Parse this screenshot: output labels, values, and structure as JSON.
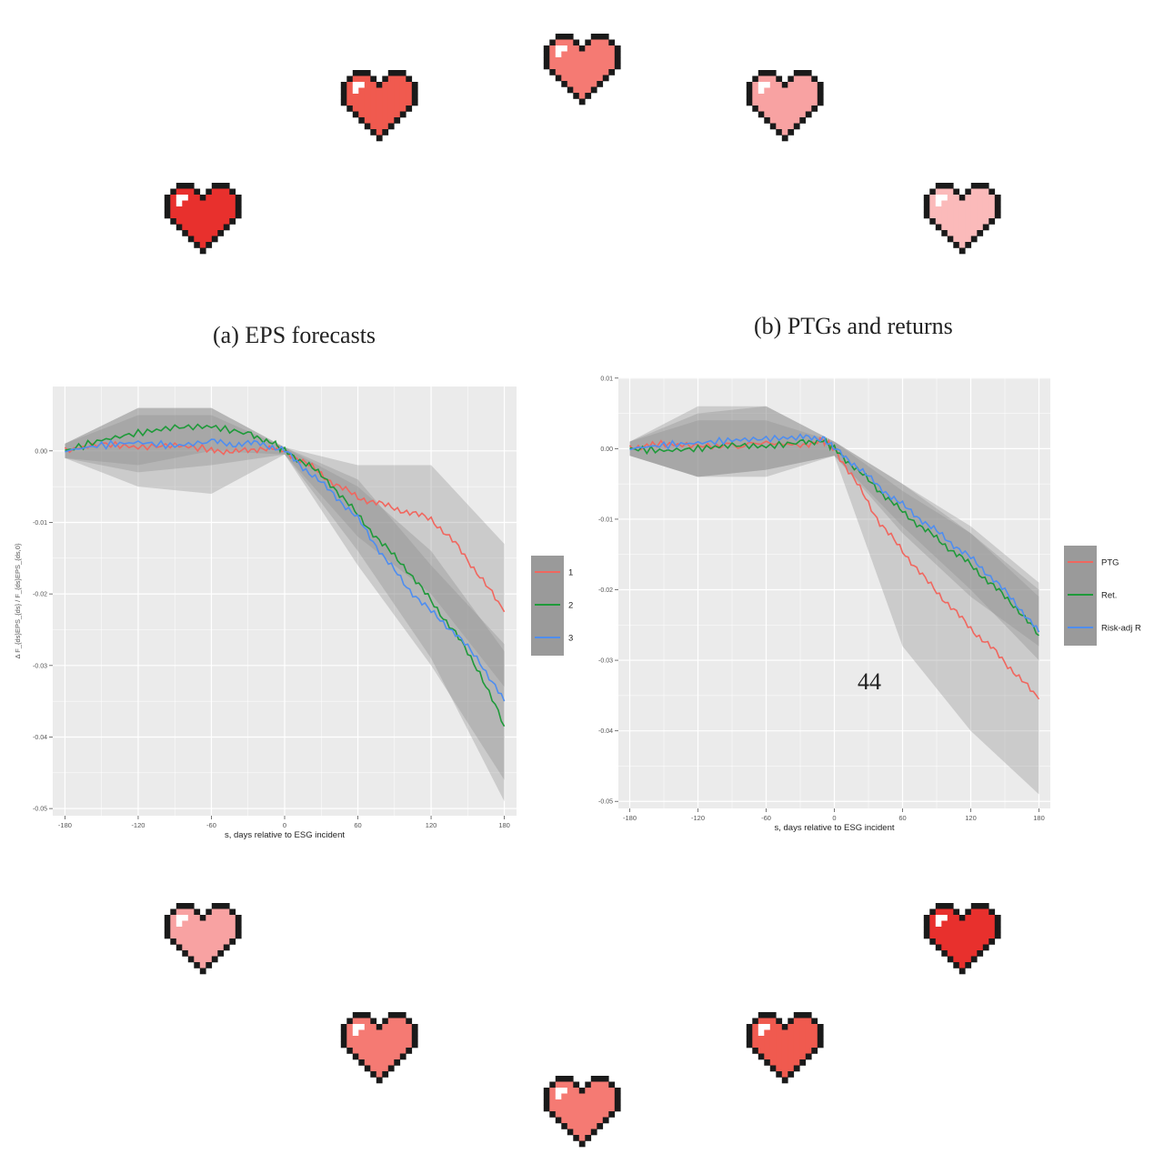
{
  "page_number": "44",
  "colors": {
    "panel_bg": "#ebebeb",
    "grid": "#ffffff",
    "ribbon": "#8a8a8a",
    "red": "#f0675f",
    "green": "#1f9a3a",
    "blue": "#4f8ef0",
    "heart_palette": [
      "#e8302d",
      "#f05a4f",
      "#f57a73",
      "#f8a2a2",
      "#fbbaba"
    ]
  },
  "decorations": {
    "icon": "pixel-heart-icon",
    "count": 12
  },
  "chart_data": [
    {
      "type": "line",
      "caption": "(a) EPS forecasts",
      "xlabel": "s, days relative to ESG incident",
      "ylabel": "Δ F_{ds}EPS_{ds} / F_{ds}EPS_{ds,0}",
      "xlim": [
        -190,
        190
      ],
      "ylim": [
        -0.051,
        0.009
      ],
      "x_ticks": [
        -180,
        -120,
        -60,
        0,
        60,
        120,
        180
      ],
      "x_tick_labels": [
        "-180",
        "-120",
        "-60",
        "0",
        "60",
        "120",
        "180"
      ],
      "y_ticks": [
        0.0,
        -0.01,
        -0.02,
        -0.03,
        -0.04,
        -0.05
      ],
      "y_tick_labels": [
        "0.00",
        "-0.01",
        "-0.02",
        "-0.03",
        "-0.04",
        "-0.05"
      ],
      "grid": true,
      "legend": {
        "position": "right",
        "entries": [
          "1",
          "2",
          "3"
        ]
      },
      "series": [
        {
          "name": "1",
          "color": "red",
          "points": [
            [
              -180,
              0.0
            ],
            [
              -150,
              0.001
            ],
            [
              -120,
              0.0005
            ],
            [
              -90,
              0.0008
            ],
            [
              -60,
              0.0002
            ],
            [
              -40,
              -0.0002
            ],
            [
              -20,
              0.0004
            ],
            [
              0,
              0.0
            ],
            [
              20,
              -0.002
            ],
            [
              40,
              -0.0045
            ],
            [
              60,
              -0.0065
            ],
            [
              80,
              -0.0075
            ],
            [
              100,
              -0.0085
            ],
            [
              120,
              -0.0095
            ],
            [
              140,
              -0.013
            ],
            [
              160,
              -0.0175
            ],
            [
              180,
              -0.0225
            ]
          ],
          "band": [
            [
              -180,
              0.001,
              -0.001
            ],
            [
              -120,
              0.006,
              -0.005
            ],
            [
              -60,
              0.006,
              -0.006
            ],
            [
              0,
              0.0005,
              -0.0005
            ],
            [
              60,
              -0.002,
              -0.012
            ],
            [
              120,
              -0.002,
              -0.02
            ],
            [
              180,
              -0.013,
              -0.033
            ]
          ]
        },
        {
          "name": "2",
          "color": "green",
          "points": [
            [
              -180,
              0.0
            ],
            [
              -150,
              0.0015
            ],
            [
              -120,
              0.0025
            ],
            [
              -90,
              0.0033
            ],
            [
              -60,
              0.0034
            ],
            [
              -30,
              0.0024
            ],
            [
              -10,
              0.0012
            ],
            [
              0,
              0.0
            ],
            [
              20,
              -0.002
            ],
            [
              40,
              -0.005
            ],
            [
              60,
              -0.009
            ],
            [
              80,
              -0.013
            ],
            [
              100,
              -0.0165
            ],
            [
              120,
              -0.021
            ],
            [
              140,
              -0.0255
            ],
            [
              160,
              -0.031
            ],
            [
              180,
              -0.0385
            ]
          ],
          "band": [
            [
              -180,
              0.001,
              -0.001
            ],
            [
              -120,
              0.006,
              -0.002
            ],
            [
              -60,
              0.006,
              0.0
            ],
            [
              0,
              0.0005,
              -0.0005
            ],
            [
              60,
              -0.005,
              -0.014
            ],
            [
              120,
              -0.014,
              -0.029
            ],
            [
              180,
              -0.028,
              -0.049
            ]
          ]
        },
        {
          "name": "3",
          "color": "blue",
          "points": [
            [
              -180,
              0.0
            ],
            [
              -150,
              0.0008
            ],
            [
              -120,
              0.0012
            ],
            [
              -90,
              0.0007
            ],
            [
              -60,
              0.0013
            ],
            [
              -40,
              0.0009
            ],
            [
              -20,
              0.0011
            ],
            [
              0,
              0.0
            ],
            [
              20,
              -0.003
            ],
            [
              40,
              -0.006
            ],
            [
              60,
              -0.0095
            ],
            [
              80,
              -0.0145
            ],
            [
              100,
              -0.019
            ],
            [
              120,
              -0.0225
            ],
            [
              140,
              -0.0255
            ],
            [
              160,
              -0.0295
            ],
            [
              180,
              -0.035
            ]
          ],
          "band": [
            [
              -180,
              0.001,
              -0.001
            ],
            [
              -120,
              0.005,
              -0.003
            ],
            [
              -60,
              0.005,
              -0.002
            ],
            [
              0,
              0.0005,
              -0.0005
            ],
            [
              60,
              -0.004,
              -0.016
            ],
            [
              120,
              -0.016,
              -0.03
            ],
            [
              180,
              -0.027,
              -0.046
            ]
          ]
        }
      ]
    },
    {
      "type": "line",
      "caption": "(b) PTGs and returns",
      "xlabel": "s, days relative to ESG incident",
      "ylabel": "",
      "xlim": [
        -190,
        190
      ],
      "ylim": [
        -0.051,
        0.0101
      ],
      "x_ticks": [
        -180,
        -120,
        -60,
        0,
        60,
        120,
        180
      ],
      "x_tick_labels": [
        "-180",
        "-120",
        "-60",
        "0",
        "60",
        "120",
        "180"
      ],
      "y_ticks": [
        0.01,
        0.0,
        -0.01,
        -0.02,
        -0.03,
        -0.04,
        -0.05
      ],
      "y_tick_labels": [
        "0.01",
        "0.00",
        "-0.01",
        "-0.02",
        "-0.03",
        "-0.04",
        "-0.05"
      ],
      "grid": true,
      "legend": {
        "position": "right",
        "entries": [
          "PTG",
          "Ret.",
          "Risk-adj R"
        ]
      },
      "series": [
        {
          "name": "PTG",
          "color": "red",
          "points": [
            [
              -180,
              0.0
            ],
            [
              -160,
              0.0007
            ],
            [
              -130,
              0.0005
            ],
            [
              -100,
              0.0003
            ],
            [
              -60,
              0.0008
            ],
            [
              -30,
              0.0005
            ],
            [
              -10,
              0.0012
            ],
            [
              0,
              0.0
            ],
            [
              20,
              -0.005
            ],
            [
              40,
              -0.0105
            ],
            [
              60,
              -0.0145
            ],
            [
              80,
              -0.0185
            ],
            [
              100,
              -0.022
            ],
            [
              120,
              -0.0255
            ],
            [
              140,
              -0.0285
            ],
            [
              160,
              -0.032
            ],
            [
              180,
              -0.0355
            ]
          ],
          "band": [
            [
              -180,
              0.001,
              -0.001
            ],
            [
              -120,
              0.006,
              -0.004
            ],
            [
              -60,
              0.006,
              -0.004
            ],
            [
              0,
              0.001,
              -0.001
            ],
            [
              60,
              -0.005,
              -0.028
            ],
            [
              120,
              -0.012,
              -0.04
            ],
            [
              180,
              -0.021,
              -0.049
            ]
          ]
        },
        {
          "name": "Ret.",
          "color": "green",
          "points": [
            [
              -180,
              0.0
            ],
            [
              -150,
              -0.0003
            ],
            [
              -120,
              0.0
            ],
            [
              -90,
              0.0005
            ],
            [
              -60,
              0.0003
            ],
            [
              -30,
              0.0009
            ],
            [
              -10,
              0.0012
            ],
            [
              0,
              0.0
            ],
            [
              20,
              -0.003
            ],
            [
              40,
              -0.006
            ],
            [
              60,
              -0.009
            ],
            [
              80,
              -0.0115
            ],
            [
              100,
              -0.014
            ],
            [
              120,
              -0.0165
            ],
            [
              140,
              -0.0195
            ],
            [
              160,
              -0.0225
            ],
            [
              180,
              -0.0265
            ]
          ],
          "band": [
            [
              -180,
              0.001,
              -0.001
            ],
            [
              -120,
              0.004,
              -0.004
            ],
            [
              -60,
              0.004,
              -0.003
            ],
            [
              0,
              0.001,
              -0.001
            ],
            [
              60,
              -0.006,
              -0.012
            ],
            [
              120,
              -0.012,
              -0.021
            ],
            [
              180,
              -0.02,
              -0.028
            ]
          ]
        },
        {
          "name": "Risk-adj R",
          "color": "blue",
          "points": [
            [
              -180,
              0.0
            ],
            [
              -150,
              0.0005
            ],
            [
              -120,
              0.0008
            ],
            [
              -90,
              0.0012
            ],
            [
              -60,
              0.0014
            ],
            [
              -30,
              0.0016
            ],
            [
              -10,
              0.0015
            ],
            [
              0,
              0.0
            ],
            [
              20,
              -0.0025
            ],
            [
              40,
              -0.0055
            ],
            [
              60,
              -0.008
            ],
            [
              80,
              -0.0105
            ],
            [
              100,
              -0.013
            ],
            [
              120,
              -0.0155
            ],
            [
              140,
              -0.0185
            ],
            [
              160,
              -0.022
            ],
            [
              180,
              -0.026
            ]
          ],
          "band": [
            [
              -180,
              0.001,
              -0.001
            ],
            [
              -120,
              0.005,
              -0.004
            ],
            [
              -60,
              0.006,
              -0.003
            ],
            [
              0,
              0.001,
              -0.001
            ],
            [
              60,
              -0.005,
              -0.011
            ],
            [
              120,
              -0.011,
              -0.02
            ],
            [
              180,
              -0.019,
              -0.03
            ]
          ]
        }
      ]
    }
  ]
}
